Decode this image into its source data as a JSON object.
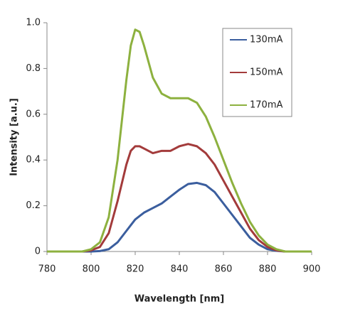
{
  "chart_data": {
    "type": "line",
    "x_label": "Wavelength [nm]",
    "y_label": "Intensity [a.u.]",
    "x": [
      780,
      796,
      800,
      804,
      808,
      812,
      816,
      818,
      820,
      822,
      824,
      828,
      832,
      836,
      840,
      844,
      848,
      852,
      856,
      860,
      864,
      868,
      872,
      876,
      880,
      884,
      888,
      900
    ],
    "series": [
      {
        "name": "130mA",
        "color": "#3b5e9e",
        "values": [
          0,
          0,
          0,
          0.002,
          0.01,
          0.04,
          0.09,
          0.115,
          0.14,
          0.155,
          0.17,
          0.19,
          0.21,
          0.24,
          0.27,
          0.295,
          0.3,
          0.29,
          0.26,
          0.21,
          0.16,
          0.11,
          0.06,
          0.03,
          0.01,
          0.003,
          0,
          0
        ]
      },
      {
        "name": "150mA",
        "color": "#a33b3b",
        "values": [
          0,
          0,
          0.005,
          0.02,
          0.08,
          0.22,
          0.38,
          0.44,
          0.46,
          0.46,
          0.45,
          0.43,
          0.44,
          0.44,
          0.46,
          0.47,
          0.46,
          0.43,
          0.38,
          0.31,
          0.24,
          0.17,
          0.1,
          0.05,
          0.02,
          0.005,
          0,
          0
        ]
      },
      {
        "name": "170mA",
        "color": "#8db13f",
        "values": [
          0,
          0,
          0.01,
          0.04,
          0.15,
          0.4,
          0.75,
          0.9,
          0.97,
          0.96,
          0.9,
          0.76,
          0.69,
          0.67,
          0.67,
          0.67,
          0.65,
          0.59,
          0.5,
          0.4,
          0.3,
          0.21,
          0.13,
          0.07,
          0.03,
          0.01,
          0,
          0
        ]
      }
    ],
    "xlim": [
      780,
      900
    ],
    "xticks": [
      780,
      800,
      820,
      840,
      860,
      880,
      900
    ],
    "ylim": [
      0,
      1
    ],
    "yticks": [
      0,
      0.2,
      0.4,
      0.6,
      0.8,
      {
        "value": 1,
        "label": "1.0"
      }
    ],
    "legend": "upper right"
  }
}
